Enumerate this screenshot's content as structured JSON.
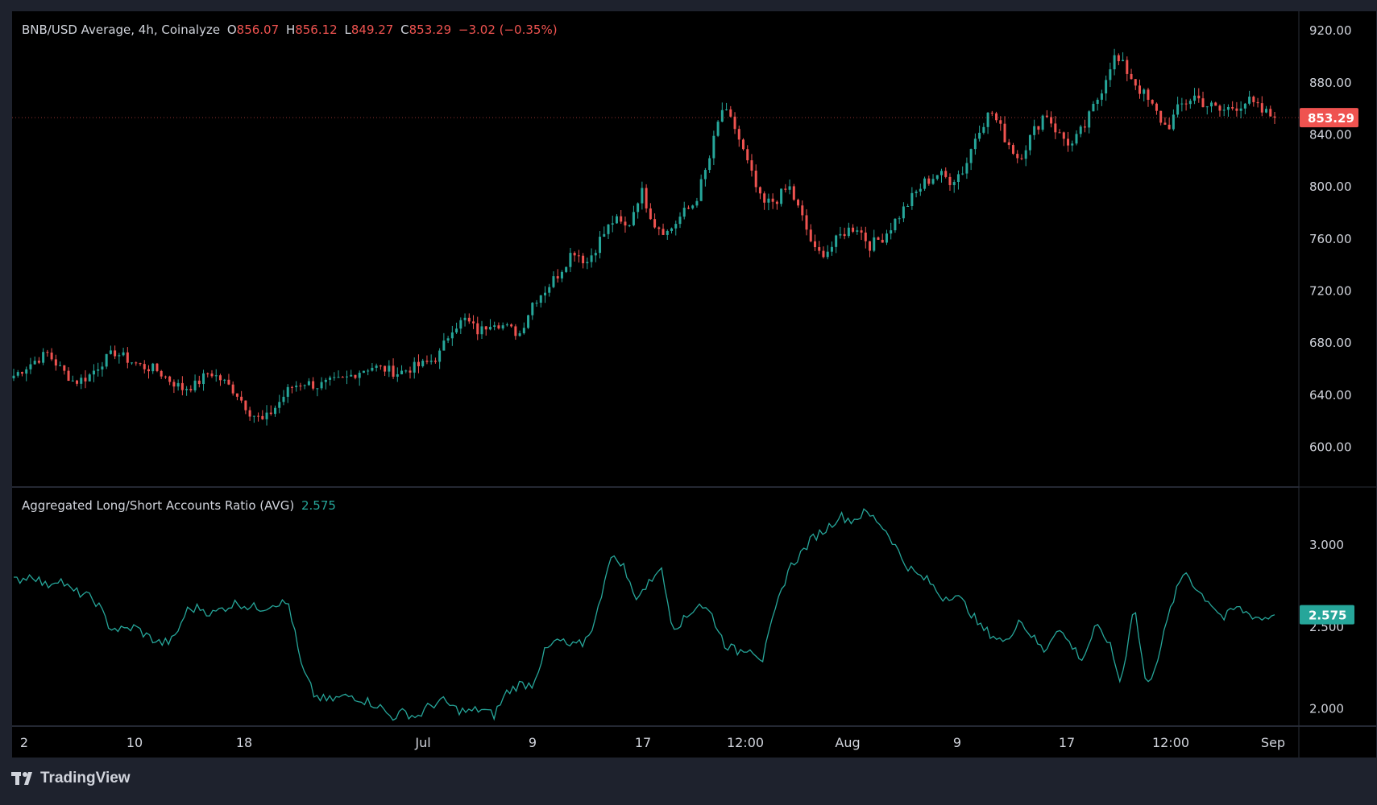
{
  "header": {
    "symbol": "BNB/USD Average, 4h, Coinalyze",
    "o_label": "O",
    "o_value": "856.07",
    "h_label": "H",
    "h_value": "856.12",
    "l_label": "L",
    "l_value": "849.27",
    "c_label": "C",
    "c_value": "853.29",
    "change": "−3.02 (−0.35%)"
  },
  "indicator": {
    "name": "Aggregated Long/Short Accounts Ratio (AVG)",
    "value": "2.575"
  },
  "price_axis": {
    "ticks": [
      "920.00",
      "880.00",
      "840.00",
      "800.00",
      "760.00",
      "720.00",
      "680.00",
      "640.00",
      "600.00"
    ],
    "last_label": "853.29"
  },
  "ratio_axis": {
    "ticks": [
      "3.000",
      "2.500",
      "2.000"
    ],
    "last_label": "2.575"
  },
  "time_axis": [
    "2",
    "10",
    "18",
    "Jul",
    "9",
    "17",
    "12:00",
    "Aug",
    "9",
    "17",
    "12:00",
    "Sep"
  ],
  "brand": "TradingView",
  "colors": {
    "up": "#26a69a",
    "down": "#ef5350",
    "line": "#26a69a",
    "background": "#000000",
    "frame": "#1e222d"
  },
  "chart_data": [
    {
      "type": "candlestick",
      "title": "BNB/USD Average, 4h, Coinalyze",
      "timeframe": "4h",
      "ylim": [
        570,
        935
      ],
      "x_labels": [
        "2",
        "10",
        "18",
        "Jul",
        "9",
        "17",
        "12:00",
        "Aug",
        "9",
        "17",
        "12:00",
        "Sep"
      ],
      "close_path": [
        [
          0,
          655
        ],
        [
          3,
          666
        ],
        [
          5,
          672
        ],
        [
          7,
          660
        ],
        [
          9,
          650
        ],
        [
          11,
          654
        ],
        [
          13,
          665
        ],
        [
          15,
          673
        ],
        [
          17,
          667
        ],
        [
          19,
          662
        ],
        [
          21,
          660
        ],
        [
          23,
          652
        ],
        [
          25,
          645
        ],
        [
          27,
          648
        ],
        [
          29,
          658
        ],
        [
          31,
          651
        ],
        [
          33,
          642
        ],
        [
          35,
          627
        ],
        [
          37,
          620
        ],
        [
          39,
          632
        ],
        [
          41,
          646
        ],
        [
          43,
          650
        ],
        [
          45,
          647
        ],
        [
          47,
          650
        ],
        [
          49,
          652
        ],
        [
          51,
          658
        ],
        [
          53,
          662
        ],
        [
          55,
          660
        ],
        [
          57,
          657
        ],
        [
          59,
          661
        ],
        [
          61,
          664
        ],
        [
          63,
          670
        ],
        [
          65,
          692
        ],
        [
          67,
          698
        ],
        [
          69,
          688
        ],
        [
          71,
          698
        ],
        [
          73,
          692
        ],
        [
          75,
          687
        ],
        [
          77,
          712
        ],
        [
          79,
          722
        ],
        [
          81,
          735
        ],
        [
          83,
          752
        ],
        [
          85,
          742
        ],
        [
          87,
          760
        ],
        [
          89,
          775
        ],
        [
          91,
          768
        ],
        [
          93,
          798
        ],
        [
          95,
          772
        ],
        [
          97,
          765
        ],
        [
          99,
          778
        ],
        [
          101,
          788
        ],
        [
          103,
          818
        ],
        [
          105,
          860
        ],
        [
          107,
          845
        ],
        [
          109,
          815
        ],
        [
          111,
          786
        ],
        [
          113,
          790
        ],
        [
          115,
          800
        ],
        [
          117,
          775
        ],
        [
          119,
          748
        ],
        [
          121,
          752
        ],
        [
          123,
          765
        ],
        [
          125,
          770
        ],
        [
          127,
          755
        ],
        [
          129,
          762
        ],
        [
          131,
          776
        ],
        [
          133,
          790
        ],
        [
          135,
          803
        ],
        [
          137,
          810
        ],
        [
          139,
          805
        ],
        [
          141,
          814
        ],
        [
          143,
          845
        ],
        [
          145,
          858
        ],
        [
          147,
          838
        ],
        [
          149,
          822
        ],
        [
          151,
          840
        ],
        [
          153,
          858
        ],
        [
          155,
          840
        ],
        [
          157,
          832
        ],
        [
          159,
          848
        ],
        [
          161,
          871
        ],
        [
          163,
          900
        ],
        [
          165,
          890
        ],
        [
          167,
          875
        ],
        [
          169,
          860
        ],
        [
          171,
          845
        ],
        [
          173,
          862
        ],
        [
          175,
          870
        ],
        [
          177,
          863
        ],
        [
          179,
          858
        ],
        [
          181,
          862
        ],
        [
          183,
          866
        ],
        [
          185,
          858
        ],
        [
          187,
          853.29
        ]
      ],
      "last_close": 853.29
    },
    {
      "type": "line",
      "title": "Aggregated Long/Short Accounts Ratio (AVG)",
      "ylim": [
        1.9,
        3.35
      ],
      "points": [
        [
          0,
          2.78
        ],
        [
          3,
          2.82
        ],
        [
          5,
          2.75
        ],
        [
          7,
          2.8
        ],
        [
          9,
          2.72
        ],
        [
          11,
          2.7
        ],
        [
          13,
          2.65
        ],
        [
          15,
          2.5
        ],
        [
          17,
          2.48
        ],
        [
          19,
          2.5
        ],
        [
          21,
          2.44
        ],
        [
          23,
          2.4
        ],
        [
          25,
          2.42
        ],
        [
          27,
          2.6
        ],
        [
          29,
          2.62
        ],
        [
          31,
          2.58
        ],
        [
          33,
          2.62
        ],
        [
          35,
          2.65
        ],
        [
          37,
          2.62
        ],
        [
          39,
          2.62
        ],
        [
          41,
          2.65
        ],
        [
          43,
          2.64
        ],
        [
          45,
          2.25
        ],
        [
          47,
          2.08
        ],
        [
          49,
          2.05
        ],
        [
          51,
          2.07
        ],
        [
          53,
          2.08
        ],
        [
          55,
          2.05
        ],
        [
          57,
          2.02
        ],
        [
          59,
          1.95
        ],
        [
          61,
          1.98
        ],
        [
          63,
          1.95
        ],
        [
          65,
          2.02
        ],
        [
          67,
          2.05
        ],
        [
          69,
          2.0
        ],
        [
          71,
          1.98
        ],
        [
          73,
          2.0
        ],
        [
          75,
          1.96
        ],
        [
          77,
          2.1
        ],
        [
          79,
          2.15
        ],
        [
          81,
          2.15
        ],
        [
          83,
          2.35
        ],
        [
          85,
          2.42
        ],
        [
          87,
          2.38
        ],
        [
          89,
          2.4
        ],
        [
          91,
          2.55
        ],
        [
          93,
          2.92
        ],
        [
          95,
          2.9
        ],
        [
          97,
          2.68
        ],
        [
          99,
          2.75
        ],
        [
          101,
          2.88
        ],
        [
          103,
          2.5
        ],
        [
          105,
          2.55
        ],
        [
          107,
          2.65
        ],
        [
          109,
          2.58
        ],
        [
          111,
          2.4
        ],
        [
          113,
          2.35
        ],
        [
          115,
          2.38
        ],
        [
          117,
          2.3
        ],
        [
          119,
          2.6
        ],
        [
          121,
          2.85
        ],
        [
          123,
          2.95
        ],
        [
          125,
          3.05
        ],
        [
          127,
          3.1
        ],
        [
          129,
          3.18
        ],
        [
          131,
          3.15
        ],
        [
          133,
          3.2
        ],
        [
          135,
          3.15
        ],
        [
          137,
          3.05
        ],
        [
          139,
          2.9
        ],
        [
          141,
          2.82
        ],
        [
          143,
          2.78
        ],
        [
          145,
          2.68
        ],
        [
          147,
          2.7
        ],
        [
          149,
          2.62
        ],
        [
          151,
          2.5
        ],
        [
          153,
          2.45
        ],
        [
          155,
          2.4
        ],
        [
          157,
          2.55
        ],
        [
          159,
          2.45
        ],
        [
          161,
          2.35
        ],
        [
          163,
          2.5
        ],
        [
          165,
          2.4
        ],
        [
          167,
          2.3
        ],
        [
          169,
          2.5
        ],
        [
          171,
          2.42
        ],
        [
          173,
          2.15
        ],
        [
          175,
          2.65
        ],
        [
          177,
          2.12
        ],
        [
          179,
          2.35
        ],
        [
          181,
          2.65
        ],
        [
          183,
          2.85
        ],
        [
          185,
          2.72
        ],
        [
          187,
          2.65
        ],
        [
          189,
          2.55
        ],
        [
          191,
          2.62
        ],
        [
          193,
          2.58
        ],
        [
          195,
          2.55
        ],
        [
          197,
          2.575
        ]
      ],
      "last_value": 2.575
    }
  ]
}
